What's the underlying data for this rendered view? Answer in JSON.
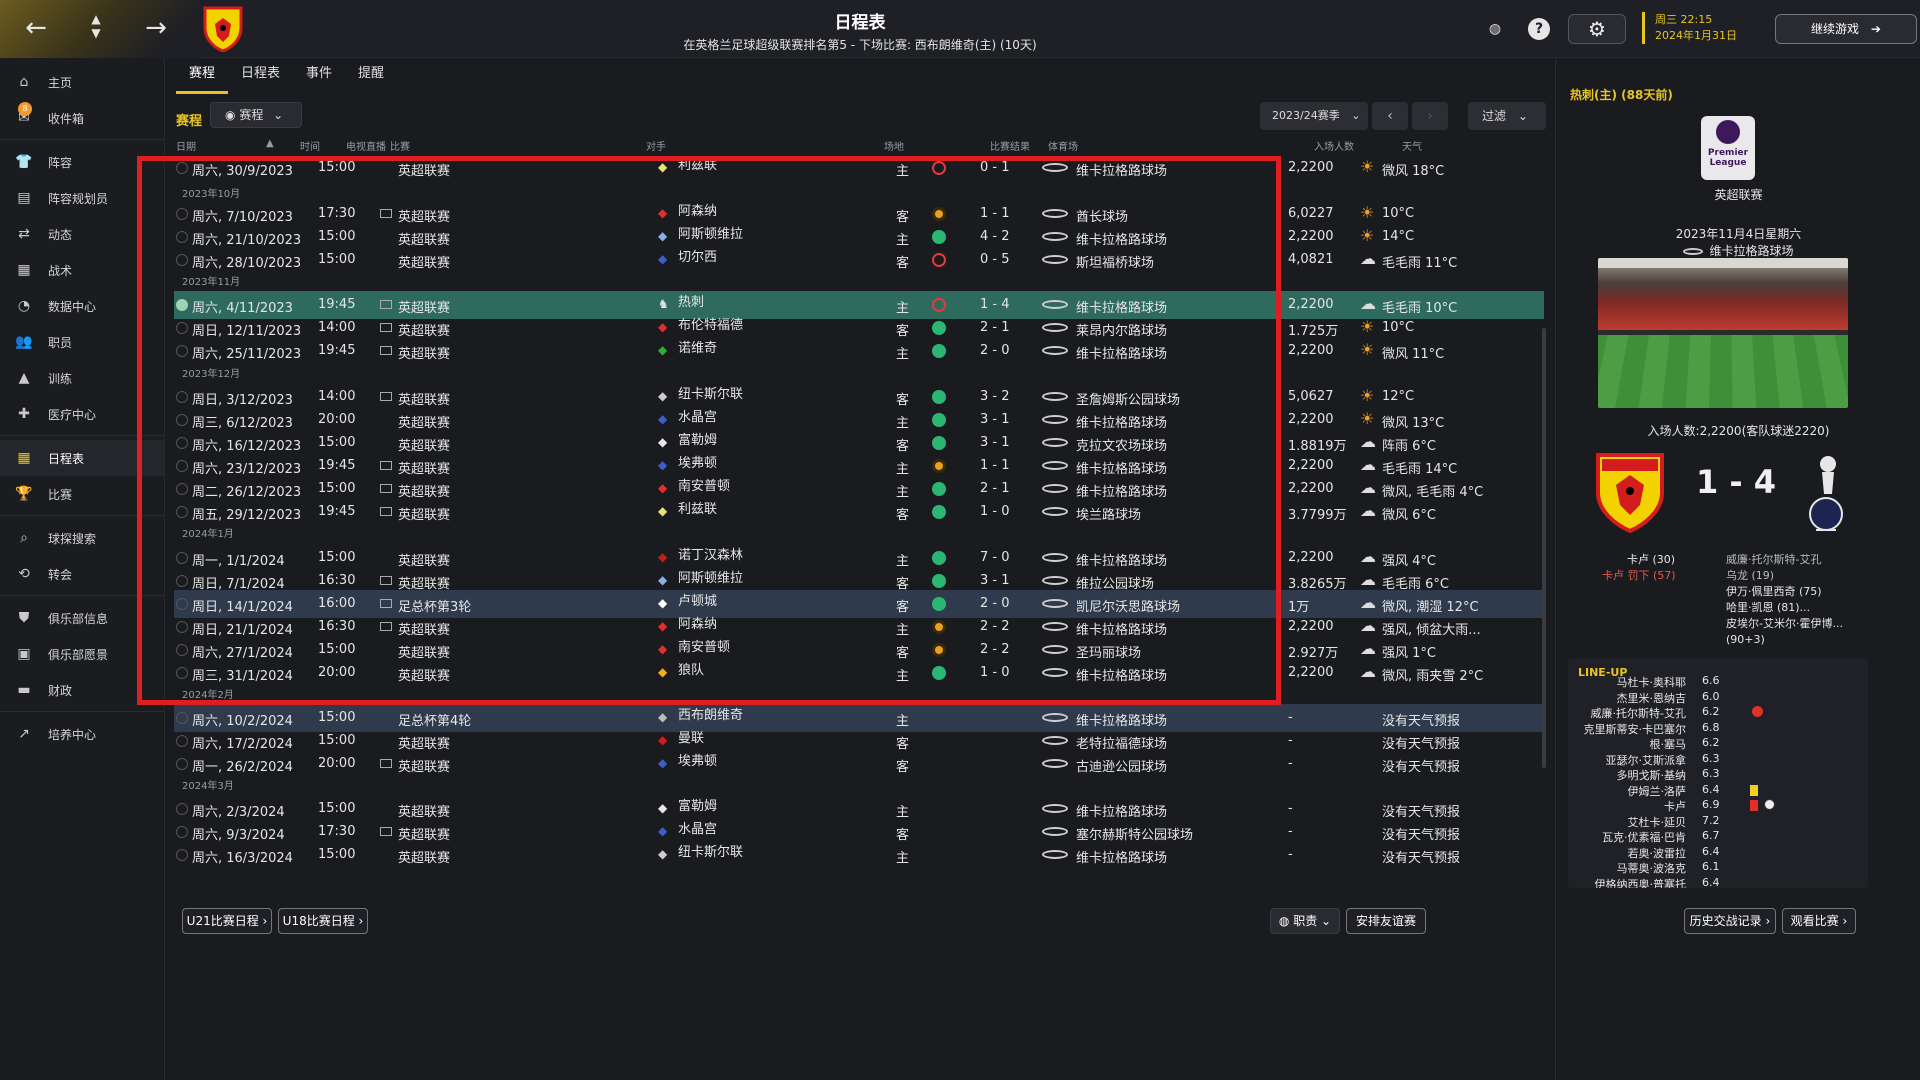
{
  "header": {
    "title": "日程表",
    "subtitle": "在英格兰足球超级联赛排名第5 - 下场比赛: 西布朗维奇(主) (10天)",
    "date_line1": "周三 22:15",
    "date_line2": "2024年1月31日",
    "continue_label": "继续游戏",
    "accent": "#e8c422"
  },
  "sidebar": {
    "items": [
      {
        "label": "主页",
        "icon": "home-icon"
      },
      {
        "label": "收件箱",
        "icon": "inbox-icon",
        "badge": "8"
      },
      {
        "label": "阵容",
        "icon": "squad-icon"
      },
      {
        "label": "阵容规划员",
        "icon": "planner-icon"
      },
      {
        "label": "动态",
        "icon": "dynamics-icon"
      },
      {
        "label": "战术",
        "icon": "tactics-icon"
      },
      {
        "label": "数据中心",
        "icon": "data-icon"
      },
      {
        "label": "职员",
        "icon": "staff-icon"
      },
      {
        "label": "训练",
        "icon": "training-icon"
      },
      {
        "label": "医疗中心",
        "icon": "medical-icon"
      },
      {
        "label": "日程表",
        "icon": "calendar-icon"
      },
      {
        "label": "比赛",
        "icon": "trophy-icon"
      },
      {
        "label": "球探搜索",
        "icon": "search-icon"
      },
      {
        "label": "转会",
        "icon": "transfer-icon"
      },
      {
        "label": "俱乐部信息",
        "icon": "shield-icon"
      },
      {
        "label": "俱乐部愿景",
        "icon": "vision-icon"
      },
      {
        "label": "财政",
        "icon": "finance-icon"
      },
      {
        "label": "培养中心",
        "icon": "development-icon"
      }
    ]
  },
  "tabs": [
    "赛程",
    "日程表",
    "事件",
    "提醒"
  ],
  "subbar": {
    "title": "赛程",
    "select": "赛程",
    "season": "2023/24赛季",
    "filter": "过滤"
  },
  "columns": [
    "日期",
    "时间",
    "电视直播",
    "比赛",
    "对手",
    "场地",
    "比赛结果",
    "体育场",
    "入场人数",
    "天气"
  ],
  "months": {
    "oct": "2023年10月",
    "nov": "2023年11月",
    "dec": "2023年12月",
    "jan": "2024年1月",
    "feb": "2024年2月",
    "mar": "2024年3月"
  },
  "fixtures": [
    {
      "date": "周六, 30/9/2023",
      "time": "15:00",
      "comp": "英超联赛",
      "opp": "利兹联",
      "venue": "主",
      "result": "0 - 1",
      "stadium": "维卡拉格路球场",
      "att": "2,2200",
      "wx": "微风 18°C"
    },
    {
      "date": "周六, 7/10/2023",
      "time": "17:30",
      "comp": "英超联赛",
      "opp": "阿森纳",
      "venue": "客",
      "result": "1 - 1",
      "stadium": "酋长球场",
      "att": "6,0227",
      "wx": "10°C"
    },
    {
      "date": "周六, 21/10/2023",
      "time": "15:00",
      "comp": "英超联赛",
      "opp": "阿斯顿维拉",
      "venue": "主",
      "result": "4 - 2",
      "stadium": "维卡拉格路球场",
      "att": "2,2200",
      "wx": "14°C"
    },
    {
      "date": "周六, 28/10/2023",
      "time": "15:00",
      "comp": "英超联赛",
      "opp": "切尔西",
      "venue": "客",
      "result": "0 - 5",
      "stadium": "斯坦福桥球场",
      "att": "4,0821",
      "wx": "毛毛雨 11°C"
    },
    {
      "date": "周六, 4/11/2023",
      "time": "19:45",
      "comp": "英超联赛",
      "opp": "热刺",
      "venue": "主",
      "result": "1 - 4",
      "stadium": "维卡拉格路球场",
      "att": "2,2200",
      "wx": "毛毛雨 10°C"
    },
    {
      "date": "周日, 12/11/2023",
      "time": "14:00",
      "comp": "英超联赛",
      "opp": "布伦特福德",
      "venue": "客",
      "result": "2 - 1",
      "stadium": "莱昂内尔路球场",
      "att": "1.725万",
      "wx": "10°C"
    },
    {
      "date": "周六, 25/11/2023",
      "time": "19:45",
      "comp": "英超联赛",
      "opp": "诺维奇",
      "venue": "主",
      "result": "2 - 0",
      "stadium": "维卡拉格路球场",
      "att": "2,2200",
      "wx": "微风 11°C"
    },
    {
      "date": "周日, 3/12/2023",
      "time": "14:00",
      "comp": "英超联赛",
      "opp": "纽卡斯尔联",
      "venue": "客",
      "result": "3 - 2",
      "stadium": "圣詹姆斯公园球场",
      "att": "5,0627",
      "wx": "12°C"
    },
    {
      "date": "周三, 6/12/2023",
      "time": "20:00",
      "comp": "英超联赛",
      "opp": "水晶宫",
      "venue": "主",
      "result": "3 - 1",
      "stadium": "维卡拉格路球场",
      "att": "2,2200",
      "wx": "微风 13°C"
    },
    {
      "date": "周六, 16/12/2023",
      "time": "15:00",
      "comp": "英超联赛",
      "opp": "富勒姆",
      "venue": "客",
      "result": "3 - 1",
      "stadium": "克拉文农场球场",
      "att": "1.8819万",
      "wx": "阵雨 6°C"
    },
    {
      "date": "周六, 23/12/2023",
      "time": "19:45",
      "comp": "英超联赛",
      "opp": "埃弗顿",
      "venue": "主",
      "result": "1 - 1",
      "stadium": "维卡拉格路球场",
      "att": "2,2200",
      "wx": "毛毛雨 14°C"
    },
    {
      "date": "周二, 26/12/2023",
      "time": "15:00",
      "comp": "英超联赛",
      "opp": "南安普顿",
      "venue": "主",
      "result": "2 - 1",
      "stadium": "维卡拉格路球场",
      "att": "2,2200",
      "wx": "微风, 毛毛雨 4°C"
    },
    {
      "date": "周五, 29/12/2023",
      "time": "19:45",
      "comp": "英超联赛",
      "opp": "利兹联",
      "venue": "客",
      "result": "1 - 0",
      "stadium": "埃兰路球场",
      "att": "3.7799万",
      "wx": "微风 6°C"
    },
    {
      "date": "周一, 1/1/2024",
      "time": "15:00",
      "comp": "英超联赛",
      "opp": "诺丁汉森林",
      "venue": "主",
      "result": "7 - 0",
      "stadium": "维卡拉格路球场",
      "att": "2,2200",
      "wx": "强风 4°C"
    },
    {
      "date": "周日, 7/1/2024",
      "time": "16:30",
      "comp": "英超联赛",
      "opp": "阿斯顿维拉",
      "venue": "客",
      "result": "3 - 1",
      "stadium": "维拉公园球场",
      "att": "3.8265万",
      "wx": "毛毛雨 6°C"
    },
    {
      "date": "周日, 14/1/2024",
      "time": "16:00",
      "comp": "足总杯第3轮",
      "opp": "卢顿城",
      "venue": "客",
      "result": "2 - 0",
      "stadium": "凯尼尔沃思路球场",
      "att": "1万",
      "wx": "微风, 潮湿 12°C"
    },
    {
      "date": "周日, 21/1/2024",
      "time": "16:30",
      "comp": "英超联赛",
      "opp": "阿森纳",
      "venue": "主",
      "result": "2 - 2",
      "stadium": "维卡拉格路球场",
      "att": "2,2200",
      "wx": "强风, 倾盆大雨..."
    },
    {
      "date": "周六, 27/1/2024",
      "time": "15:00",
      "comp": "英超联赛",
      "opp": "南安普顿",
      "venue": "客",
      "result": "2 - 2",
      "stadium": "圣玛丽球场",
      "att": "2.927万",
      "wx": "强风 1°C"
    },
    {
      "date": "周三, 31/1/2024",
      "time": "20:00",
      "comp": "英超联赛",
      "opp": "狼队",
      "venue": "主",
      "result": "1 - 0",
      "stadium": "维卡拉格路球场",
      "att": "2,2200",
      "wx": "微风, 雨夹雪 2°C"
    },
    {
      "date": "周六, 10/2/2024",
      "time": "15:00",
      "comp": "足总杯第4轮",
      "opp": "西布朗维奇",
      "venue": "主",
      "result": "",
      "stadium": "维卡拉格路球场",
      "att": "-",
      "wx": "没有天气预报"
    },
    {
      "date": "周六, 17/2/2024",
      "time": "15:00",
      "comp": "英超联赛",
      "opp": "曼联",
      "venue": "客",
      "result": "",
      "stadium": "老特拉福德球场",
      "att": "-",
      "wx": "没有天气预报"
    },
    {
      "date": "周一, 26/2/2024",
      "time": "20:00",
      "comp": "英超联赛",
      "opp": "埃弗顿",
      "venue": "客",
      "result": "",
      "stadium": "古迪逊公园球场",
      "att": "-",
      "wx": "没有天气预报"
    },
    {
      "date": "周六, 2/3/2024",
      "time": "15:00",
      "comp": "英超联赛",
      "opp": "富勒姆",
      "venue": "主",
      "result": "",
      "stadium": "维卡拉格路球场",
      "att": "-",
      "wx": "没有天气预报"
    },
    {
      "date": "周六, 9/3/2024",
      "time": "17:30",
      "comp": "英超联赛",
      "opp": "水晶宫",
      "venue": "客",
      "result": "",
      "stadium": "塞尔赫斯特公园球场",
      "att": "-",
      "wx": "没有天气预报"
    },
    {
      "date": "周六, 16/3/2024",
      "time": "15:00",
      "comp": "英超联赛",
      "opp": "纽卡斯尔联",
      "venue": "主",
      "result": "",
      "stadium": "维卡拉格路球场",
      "att": "-",
      "wx": "没有天气预报"
    }
  ],
  "bottom": {
    "u21": "U21比赛日程",
    "u18": "U18比赛日程",
    "staff": "职责",
    "friendly": "安排友谊赛"
  },
  "right": {
    "title": "热刺(主) (88天前)",
    "league_logo_text": "Premier League",
    "competition": "英超联赛",
    "date": "2023年11月4日星期六",
    "stadium": "维卡拉格路球场",
    "attendance": "入场人数:2,2200(客队球迷2220)",
    "score": "1 - 4",
    "home_scorer1": "卡卢 (30)",
    "home_scorer2": "卡卢 罚下 (57)",
    "away_scorer1": "威廉·托尔斯特-艾孔",
    "away_scorer2": "乌龙 (19)",
    "away_scorer3": "伊万·佩里西奇 (75)",
    "away_scorer4": "哈里·凯恩 (81)...",
    "away_scorer5": "皮埃尔-艾米尔·霍伊博...",
    "away_scorer6": "(90+3)",
    "lineup_title": "LINE-UP",
    "lineup": [
      {
        "name": "马杜卡·奥科耶",
        "rating": "6.6"
      },
      {
        "name": "杰里米·恩纳吉",
        "rating": "6.0"
      },
      {
        "name": "威廉·托尔斯特-艾孔",
        "rating": "6.2"
      },
      {
        "name": "克里斯蒂安·卡巴塞尔",
        "rating": "6.8"
      },
      {
        "name": "根·塞马",
        "rating": "6.2"
      },
      {
        "name": "亚瑟尔·艾斯派拿",
        "rating": "6.3"
      },
      {
        "name": "多明戈斯·基纳",
        "rating": "6.3"
      },
      {
        "name": "伊姆兰·洛萨",
        "rating": "6.4"
      },
      {
        "name": "卡卢",
        "rating": "6.9"
      },
      {
        "name": "艾杜卡·延贝",
        "rating": "7.2"
      },
      {
        "name": "瓦克·优素福·巴肯",
        "rating": "6.7"
      },
      {
        "name": "若奥·波雷拉",
        "rating": "6.4"
      },
      {
        "name": "马蒂奥·波洛克",
        "rating": "6.1"
      },
      {
        "name": "伊格纳西奥·普塞托",
        "rating": "6.4"
      }
    ],
    "history_btn": "历史交战记录",
    "watch_btn": "观看比赛"
  }
}
